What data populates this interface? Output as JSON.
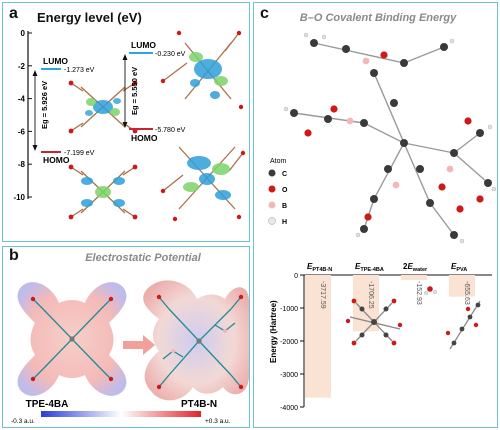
{
  "panel_a": {
    "tag": "a",
    "title": "Energy level (eV)",
    "y_ticks": [
      "0",
      "-2",
      "-4",
      "-6",
      "-8",
      "-10"
    ],
    "left": {
      "lumo_label": "LUMO",
      "homo_label": "HOMO",
      "lumo_value": "-1.273 eV",
      "homo_value": "-7.199 eV",
      "gap_label": "Eg = 5.926 eV"
    },
    "right": {
      "lumo_label": "LUMO",
      "homo_label": "HOMO",
      "lumo_value": "-0.230 eV",
      "homo_value": "-5.780 eV",
      "gap_label": "Eg = 5.550 eV"
    },
    "colors": {
      "lumo_line": "#2aa7e0",
      "homo_line": "#c6262e",
      "orbital_blue": "#2d9fd8",
      "orbital_green": "#7bd36a"
    }
  },
  "panel_b": {
    "tag": "b",
    "title": "Electrostatic Potential",
    "left_label": "TPE-4BA",
    "right_label": "PT4B-N",
    "scale_min": "-0.3 a.u.",
    "scale_max": "+0.3 a.u.",
    "colors": {
      "negative": "#2a3cd6",
      "neutral": "#ffffff",
      "positive": "#e0262a"
    }
  },
  "panel_c": {
    "tag": "c",
    "title": "B–O Covalent Binding Energy",
    "legend_title": "Atom",
    "legend": [
      {
        "symbol": "C",
        "color": "#3a3a3a"
      },
      {
        "symbol": "O",
        "color": "#d01818"
      },
      {
        "symbol": "B",
        "color": "#f2b8b8"
      },
      {
        "symbol": "H",
        "color": "#e8e8e8"
      }
    ]
  },
  "chart_data": {
    "type": "bar",
    "categories": [
      "EPT4B-N",
      "ETPE-4BA",
      "2Ewater",
      "EPVA"
    ],
    "category_labels": [
      {
        "main": "E",
        "sub": "PT4B-N",
        "prefix": ""
      },
      {
        "main": "E",
        "sub": "TPE-4BA",
        "prefix": ""
      },
      {
        "main": "E",
        "sub": "water",
        "prefix": "2"
      },
      {
        "main": "E",
        "sub": "PVA",
        "prefix": ""
      }
    ],
    "values": [
      -3717.59,
      -1706.25,
      -152.93,
      -655.63
    ],
    "value_labels": [
      "-3717.59",
      "-1706.25",
      "-152.93",
      "-655.63"
    ],
    "ylabel": "Energy (Hartree)",
    "y_ticks": [
      0,
      -1000,
      -2000,
      -3000,
      -4000
    ],
    "ylim": [
      -4000,
      0
    ],
    "bar_color": "#fbe3d3"
  }
}
